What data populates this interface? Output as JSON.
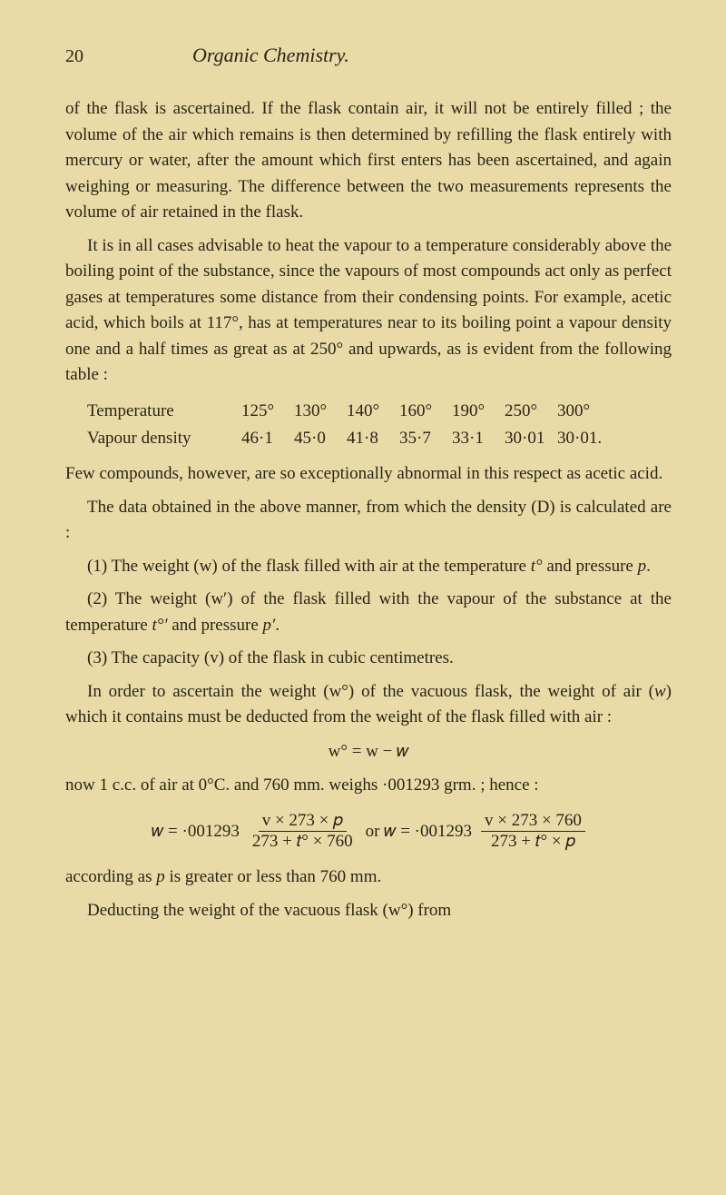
{
  "page": {
    "number": "20",
    "title": "Organic Chemistry."
  },
  "paragraphs": {
    "p1": "of the flask is ascertained. If the flask contain air, it will not be entirely filled ; the volume of the air which remains is then determined by refilling the flask entirely with mercury or water, after the amount which first enters has been ascertained, and again weighing or measuring. The difference between the two measurements represents the volume of air retained in the flask.",
    "p2": "It is in all cases advisable to heat the vapour to a temperature considerably above the boiling point of the substance, since the vapours of most compounds act only as perfect gases at temperatures some distance from their condensing points. For example, acetic acid, which boils at 117°, has at temperatures near to its boiling point a vapour density one and a half times as great as at 250° and upwards, as is evident from the following table :",
    "p3": "Few compounds, however, are so exceptionally abnormal in this respect as acetic acid.",
    "p4a": "The data obtained in the above manner, from which the density (",
    "p4b": ") is calculated are :",
    "i1a": "(1) The weight (w) of the flask filled with air at the temperature ",
    "i1b": " and pressure ",
    "i2a": "(2) The weight (w′) of the flask filled with the vapour of the substance at the temperature ",
    "i2b": " and pressure ",
    "i3": "(3) The capacity (v) of the flask in cubic centimetres.",
    "p5a": "In order to ascertain the weight (w°) of the vacuous flask, the weight of air (",
    "p5b": ") which it contains must be deducted from the weight of the flask filled with air :",
    "p6": "now 1 c.c. of air at 0°C. and 760 mm. weighs ·001293 grm. ; hence :",
    "p7a": "according as ",
    "p7b": " is greater or less than 760 mm.",
    "p8": "Deducting the weight of the vacuous flask (w°) from"
  },
  "table": {
    "row1label": "Temperature",
    "row2label": "Vapour density",
    "temps": [
      "125°",
      "130°",
      "140°",
      "160°",
      "190°",
      "250°",
      "300°"
    ],
    "dens": [
      "46·1",
      "45·0",
      "41·8",
      "35·7",
      "33·1",
      "30·01",
      "30·01."
    ]
  },
  "formulas": {
    "centered": "w° = w − 𝑤",
    "lhs1": "𝑤 = ·001293",
    "num1": "v × 273 × 𝑝",
    "den1": "273 + 𝑡° × 760",
    "mid": "or 𝑤 = ·001293",
    "num2": "v × 273 × 760",
    "den2": "273 + 𝑡° × 𝑝"
  },
  "symbols": {
    "D": "D",
    "t": "t°",
    "p": "p",
    "tprime": "t°′",
    "pprime": "p′",
    "w_ital": "w",
    "period": "."
  },
  "style": {
    "bg": "#e8dba8",
    "text": "#2a2416",
    "body_fontsize": 19,
    "title_fontsize": 22,
    "font_family": "Georgia, Times New Roman, serif"
  }
}
